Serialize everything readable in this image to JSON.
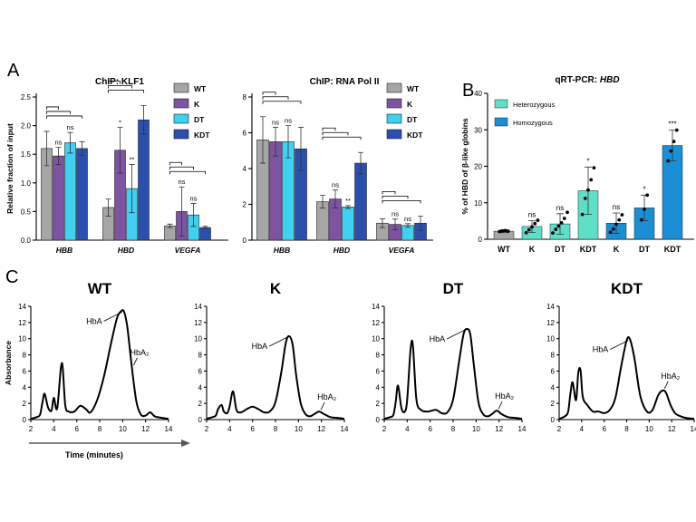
{
  "panels": {
    "A": "A",
    "B": "B",
    "C": "C"
  },
  "chart_data": [
    {
      "id": "chip-klf1",
      "type": "bar",
      "title": "ChIP: KLF1",
      "ylabel": "Relative fraction of input",
      "ylim": [
        0,
        2.5
      ],
      "yticks": [
        "0.0",
        "0.5",
        "1.0",
        "1.5",
        "2.0",
        "2.5"
      ],
      "categories": [
        "HBB",
        "HBD",
        "VEGFA"
      ],
      "series": [
        {
          "name": "WT",
          "color": "#a6a6a6",
          "values": [
            1.6,
            0.57,
            0.25
          ],
          "errors": [
            0.3,
            0.15,
            0.03
          ]
        },
        {
          "name": "K",
          "color": "#7e53a2",
          "values": [
            1.47,
            1.57,
            0.5
          ],
          "errors": [
            0.15,
            0.4,
            0.43
          ]
        },
        {
          "name": "DT",
          "color": "#3ed1f2",
          "values": [
            1.7,
            0.9,
            0.44
          ],
          "errors": [
            0.18,
            0.42,
            0.2
          ]
        },
        {
          "name": "KDT",
          "color": "#2b4fae",
          "values": [
            1.6,
            2.1,
            0.22
          ],
          "errors": [
            0.12,
            0.25,
            0.02
          ]
        }
      ],
      "significance": [
        [
          "",
          "ns",
          "ns"
        ],
        [
          "",
          "*",
          "**"
        ],
        [
          "",
          "ns",
          "ns"
        ]
      ],
      "legend_position": "top-right"
    },
    {
      "id": "chip-rnapol2",
      "type": "bar",
      "title": "ChIP: RNA Pol II",
      "ylabel": "",
      "ylim": [
        0,
        8
      ],
      "yticks": [
        "0",
        "2",
        "4",
        "6",
        "8"
      ],
      "categories": [
        "HBB",
        "HBD",
        "VEGFA"
      ],
      "series": [
        {
          "name": "WT",
          "color": "#a6a6a6",
          "values": [
            5.6,
            2.15,
            0.95
          ],
          "errors": [
            1.3,
            0.35,
            0.25
          ]
        },
        {
          "name": "K",
          "color": "#7e53a2",
          "values": [
            5.5,
            2.3,
            0.88
          ],
          "errors": [
            0.8,
            0.5,
            0.3
          ]
        },
        {
          "name": "DT",
          "color": "#3ed1f2",
          "values": [
            5.5,
            1.85,
            0.82
          ],
          "errors": [
            0.9,
            0.08,
            0.1
          ]
        },
        {
          "name": "KDT",
          "color": "#2b4fae",
          "values": [
            5.1,
            4.3,
            0.95
          ],
          "errors": [
            1.2,
            0.6,
            0.4
          ]
        }
      ],
      "significance": [
        [
          "",
          "ns",
          "ns"
        ],
        [
          "",
          "ns",
          "**"
        ],
        [
          "",
          "ns",
          "ns"
        ]
      ],
      "legend_position": "top-right"
    },
    {
      "id": "qrt-pcr-hbd",
      "type": "bar",
      "title_prefix": "qRT-PCR: ",
      "title_gene": "HBD",
      "ylabel": "% of HBD of β-like globins",
      "ylim": [
        0,
        40
      ],
      "yticks": [
        "0",
        "10",
        "20",
        "30",
        "40"
      ],
      "categories": [
        "WT",
        "K",
        "DT",
        "KDT",
        "K",
        "DT",
        "KDT"
      ],
      "values": [
        2.2,
        3.5,
        4.2,
        13.3,
        4.4,
        8.6,
        25.7
      ],
      "errors": [
        0.4,
        1.6,
        2.8,
        6.5,
        2.8,
        3.5,
        4.2
      ],
      "significance": [
        "",
        "ns",
        "ns",
        "*",
        "ns",
        "*",
        "***"
      ],
      "colors": [
        "#a6a6a6",
        "#5ee0c8",
        "#5ee0c8",
        "#5ee0c8",
        "#1a8fd6",
        "#1a8fd6",
        "#1a8fd6"
      ],
      "legend": [
        {
          "label": "Heterozygous",
          "color": "#5ee0c8"
        },
        {
          "label": "Homozygous",
          "color": "#1a8fd6"
        }
      ],
      "points": [
        [
          2.1,
          2.3,
          2.4,
          2.2
        ],
        [
          1.8,
          2.6,
          3.4,
          4.3,
          5.2
        ],
        [
          1.7,
          2.7,
          3.6,
          4.5,
          5.7,
          7.4
        ],
        [
          6.8,
          11.2,
          13.5,
          16.3,
          19.6
        ],
        [
          1.9,
          2.8,
          4.1,
          5.3,
          6.7
        ],
        [
          5.3,
          8.2,
          12.1
        ],
        [
          21.5,
          24.2,
          26.8,
          29.9
        ]
      ],
      "legend_position": "top-left"
    },
    {
      "id": "hplc-traces",
      "type": "line",
      "xlabel": "Time (minutes)",
      "ylabel": "Absorbance",
      "xlim": [
        2,
        14
      ],
      "ylim": [
        0,
        14
      ],
      "xticks": [
        "2",
        "4",
        "6",
        "8",
        "10",
        "12",
        "14"
      ],
      "yticks": [
        "0",
        "2",
        "4",
        "6",
        "8",
        "10",
        "12",
        "14"
      ],
      "traces": [
        {
          "name": "WT",
          "labels": [
            "HbA",
            "HbA₂"
          ],
          "x": [
            2,
            2.5,
            2.8,
            3.0,
            3.2,
            3.5,
            3.8,
            4.0,
            4.3,
            4.7,
            5.0,
            5.3,
            5.8,
            6.3,
            6.8,
            7.2,
            7.8,
            8.4,
            9.0,
            9.5,
            9.8,
            10.1,
            10.4,
            10.8,
            11.2,
            11.6,
            12.0,
            12.4,
            12.8,
            13.5,
            14
          ],
          "y": [
            0.1,
            0.3,
            0.6,
            2.0,
            3.2,
            1.5,
            1.1,
            2.7,
            1.4,
            7.0,
            1.8,
            1.0,
            1.0,
            1.7,
            1.3,
            0.9,
            2.5,
            5.5,
            9.5,
            12.5,
            13.3,
            13.4,
            11.5,
            6.5,
            2.2,
            0.6,
            0.5,
            0.9,
            0.4,
            0.2,
            0.1
          ]
        },
        {
          "name": "K",
          "labels": [
            "HbA",
            "HbA₂"
          ],
          "x": [
            2,
            2.5,
            2.8,
            3.0,
            3.3,
            3.5,
            3.8,
            4.0,
            4.3,
            4.6,
            5.0,
            5.5,
            6.0,
            6.5,
            7.0,
            7.5,
            8.0,
            8.5,
            8.9,
            9.2,
            9.5,
            9.8,
            10.2,
            10.6,
            11.0,
            11.4,
            11.8,
            12.2,
            12.8,
            13.5,
            14
          ],
          "y": [
            0.1,
            0.3,
            0.5,
            1.3,
            1.8,
            1.0,
            0.8,
            1.6,
            3.5,
            1.2,
            0.9,
            1.3,
            1.6,
            1.3,
            0.9,
            1.0,
            2.2,
            5.8,
            9.5,
            10.3,
            9.2,
            5.5,
            2.0,
            0.7,
            0.4,
            0.7,
            1.0,
            0.7,
            0.3,
            0.2,
            0.1
          ]
        },
        {
          "name": "DT",
          "labels": [
            "HbA",
            "HbA₂"
          ],
          "x": [
            2,
            2.5,
            2.8,
            3.0,
            3.2,
            3.5,
            3.8,
            4.0,
            4.3,
            4.5,
            4.8,
            5.2,
            5.8,
            6.5,
            7.0,
            7.5,
            8.0,
            8.5,
            8.9,
            9.2,
            9.5,
            9.8,
            10.2,
            10.6,
            11.0,
            11.4,
            11.8,
            12.2,
            12.8,
            13.5,
            14
          ],
          "y": [
            0.1,
            0.3,
            0.6,
            2.2,
            4.2,
            1.4,
            1.0,
            2.5,
            8.8,
            9.1,
            2.5,
            1.2,
            1.0,
            1.2,
            0.8,
            0.9,
            2.5,
            7.0,
            10.5,
            11.2,
            10.5,
            6.8,
            2.2,
            0.7,
            0.4,
            0.7,
            1.1,
            0.7,
            0.3,
            0.2,
            0.1
          ]
        },
        {
          "name": "KDT",
          "labels": [
            "HbA",
            "HbA₂"
          ],
          "x": [
            2,
            2.5,
            2.8,
            3.0,
            3.2,
            3.5,
            3.7,
            3.9,
            4.1,
            4.5,
            5.0,
            5.5,
            6.0,
            6.5,
            7.0,
            7.5,
            8.0,
            8.3,
            8.7,
            9.2,
            9.8,
            10.3,
            10.8,
            11.2,
            11.5,
            11.9,
            12.3,
            12.8,
            13.3,
            14
          ],
          "y": [
            0.1,
            0.4,
            1.0,
            3.2,
            4.6,
            2.4,
            5.8,
            6.1,
            2.8,
            1.8,
            1.0,
            1.0,
            0.8,
            1.2,
            2.7,
            6.5,
            9.8,
            9.9,
            7.5,
            3.0,
            1.0,
            1.2,
            3.0,
            3.6,
            3.3,
            1.8,
            0.8,
            0.4,
            0.2,
            0.1
          ]
        }
      ]
    }
  ]
}
